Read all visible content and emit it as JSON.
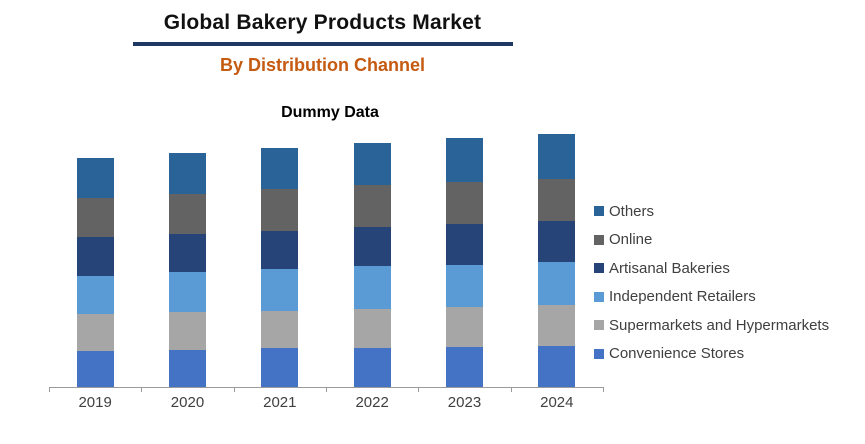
{
  "header": {
    "title": "Global Bakery Products Market",
    "subtitle": "By Distribution Channel"
  },
  "chart_data": {
    "type": "bar",
    "stacked": true,
    "title": "Dummy Data",
    "xlabel": "",
    "ylabel": "",
    "grid": false,
    "legend_position": "right",
    "value_axis_note": "no value axis shown; values are relative units estimated from bar heights",
    "ylim": [
      0,
      270
    ],
    "categories": [
      "2019",
      "2020",
      "2021",
      "2022",
      "2023",
      "2024"
    ],
    "series": [
      {
        "name": "Convenience Stores",
        "color": "#4472C4",
        "values": [
          36,
          37,
          39,
          39,
          40,
          41
        ]
      },
      {
        "name": "Supermarkets and Hypermarkets",
        "color": "#A6A6A6",
        "values": [
          37,
          38,
          37,
          39,
          40,
          41
        ]
      },
      {
        "name": "Independent Retailers",
        "color": "#5B9BD5",
        "values": [
          38,
          40,
          42,
          43,
          42,
          43
        ]
      },
      {
        "name": "Artisanal Bakeries",
        "color": "#264478",
        "values": [
          39,
          38,
          38,
          39,
          41,
          41
        ]
      },
      {
        "name": "Online",
        "color": "#636363",
        "values": [
          39,
          40,
          42,
          42,
          42,
          42
        ]
      },
      {
        "name": "Others",
        "color": "#2A6397",
        "values": [
          40,
          41,
          41,
          42,
          44,
          45
        ]
      }
    ],
    "legend_order_top_to_bottom": [
      "Others",
      "Online",
      "Artisanal Bakeries",
      "Independent Retailers",
      "Supermarkets and Hypermarkets",
      "Convenience Stores"
    ]
  },
  "colors": {
    "title_text": "#111111",
    "title_rule": "#1F3864",
    "subtitle_orange": "#C55A11",
    "axis": "#9B9B9B",
    "label_text": "#404040"
  }
}
